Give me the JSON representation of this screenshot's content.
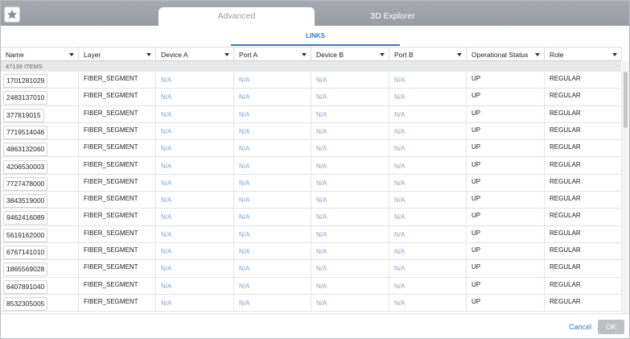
{
  "tabs": [
    "Advanced",
    "3D Explorer"
  ],
  "subtab": "LINKS",
  "columns": [
    "Name",
    "Layer",
    "Device A",
    "Port A",
    "Device B",
    "Port B",
    "Operational Status",
    "Role"
  ],
  "item_count": "47139 ITEMS",
  "rows": [
    [
      "1701281029",
      "FIBER_SEGMENT",
      "N/A",
      "N/A",
      "N/A",
      "N/A",
      "UP",
      "REGULAR"
    ],
    [
      "2483137010",
      "FIBER_SEGMENT",
      "N/A",
      "N/A",
      "N/A",
      "N/A",
      "UP",
      "REGULAR"
    ],
    [
      "377819015",
      "FIBER_SEGMENT",
      "N/A",
      "N/A",
      "N/A",
      "N/A",
      "UP",
      "REGULAR"
    ],
    [
      "7719514046",
      "FIBER_SEGMENT",
      "N/A",
      "N/A",
      "N/A",
      "N/A",
      "UP",
      "REGULAR"
    ],
    [
      "4863132060",
      "FIBER_SEGMENT",
      "N/A",
      "N/A",
      "N/A",
      "N/A",
      "UP",
      "REGULAR"
    ],
    [
      "4206530003",
      "FIBER_SEGMENT",
      "N/A",
      "N/A",
      "N/A",
      "N/A",
      "UP",
      "REGULAR"
    ],
    [
      "7727478000",
      "FIBER_SEGMENT",
      "N/A",
      "N/A",
      "N/A",
      "N/A",
      "UP",
      "REGULAR"
    ],
    [
      "3843519000",
      "FIBER_SEGMENT",
      "N/A",
      "N/A",
      "N/A",
      "N/A",
      "UP",
      "REGULAR"
    ],
    [
      "9462416089",
      "FIBER_SEGMENT",
      "N/A",
      "N/A",
      "N/A",
      "N/A",
      "UP",
      "REGULAR"
    ],
    [
      "5619162000",
      "FIBER_SEGMENT",
      "N/A",
      "N/A",
      "N/A",
      "N/A",
      "UP",
      "REGULAR"
    ],
    [
      "6767141010",
      "FIBER_SEGMENT",
      "N/A",
      "N/A",
      "N/A",
      "N/A",
      "UP",
      "REGULAR"
    ],
    [
      "1865569028",
      "FIBER_SEGMENT",
      "N/A",
      "N/A",
      "N/A",
      "N/A",
      "UP",
      "REGULAR"
    ],
    [
      "6407891040",
      "FIBER_SEGMENT",
      "N/A",
      "N/A",
      "N/A",
      "N/A",
      "UP",
      "REGULAR"
    ],
    [
      "8532305005",
      "FIBER_SEGMENT",
      "N/A",
      "N/A",
      "N/A",
      "N/A",
      "UP",
      "REGULAR"
    ]
  ],
  "footer": {
    "cancel": "Cancel",
    "ok": "OK"
  }
}
